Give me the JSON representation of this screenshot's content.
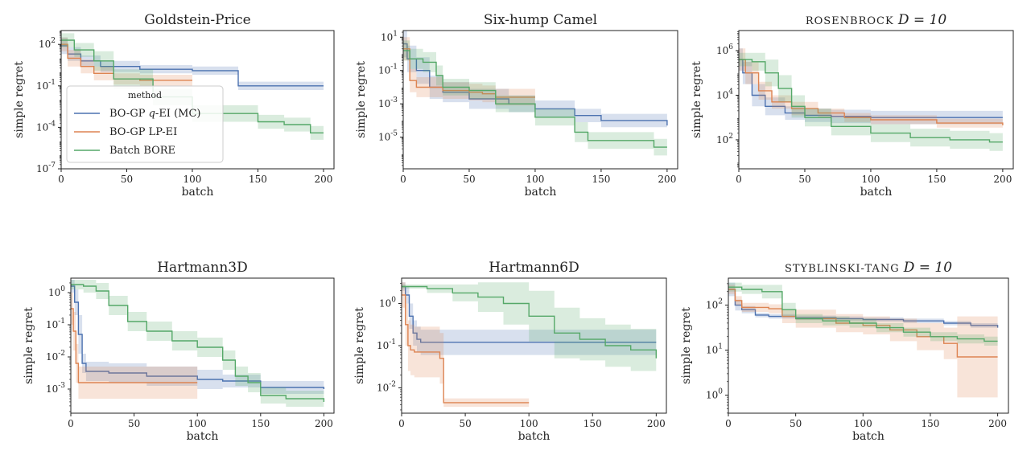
{
  "figure": {
    "x_axis_label": "batch",
    "y_axis_label": "simple regret",
    "legend": {
      "title": "method",
      "placement": "inside-left of first panel"
    }
  },
  "series_styles": [
    {
      "name": "BO-GP q-EI (MC)",
      "label_prefix": "BO-GP ",
      "label_math": "q",
      "label_suffix": "-EI (MC)",
      "color": "#4c72b0"
    },
    {
      "name": "BO-GP LP-EI",
      "label_prefix": "BO-GP LP-EI",
      "label_math": "",
      "label_suffix": "",
      "color": "#dd8452"
    },
    {
      "name": "Batch BORE",
      "label_prefix": "Batch BORE",
      "label_math": "",
      "label_suffix": "",
      "color": "#55a868"
    }
  ],
  "chart_data": [
    {
      "type": "line",
      "title": "Goldstein-Price",
      "title_parts": [
        {
          "t": "Goldstein-Price",
          "s": "n"
        }
      ],
      "xlabel": "batch",
      "ylabel": "simple regret",
      "yscale": "log",
      "xlim": [
        0,
        208
      ],
      "ylim_log": [
        -7,
        3.0
      ],
      "xticks": [
        0,
        50,
        100,
        150,
        200
      ],
      "xtick_labels": [
        "0",
        "50",
        "100",
        "150",
        "200"
      ],
      "yticks_log": [
        2,
        -1,
        -4,
        -7
      ],
      "ytick_labels": [
        "10^2",
        "10^-1",
        "10^-4",
        "10^-7"
      ],
      "series": [
        {
          "name": "BO-GP q-EI (MC)",
          "x": [
            0,
            5,
            15,
            30,
            60,
            100,
            135,
            200
          ],
          "y": [
            1.9,
            1.3,
            0.8,
            0.4,
            0.2,
            0.1,
            -1.0,
            -1.0
          ],
          "band": [
            0.6,
            0.5,
            0.4,
            0.4,
            0.3,
            0.3,
            0.3,
            0.3
          ]
        },
        {
          "name": "BO-GP LP-EI",
          "x": [
            0,
            5,
            15,
            25,
            40,
            60,
            100
          ],
          "y": [
            2.0,
            1.0,
            0.4,
            -0.1,
            -0.5,
            -0.6,
            -0.6
          ],
          "band": [
            0.5,
            0.6,
            0.5,
            0.5,
            0.4,
            0.4,
            0.4
          ]
        },
        {
          "name": "Batch BORE",
          "x": [
            0,
            10,
            25,
            40,
            70,
            100,
            150,
            170,
            190,
            200
          ],
          "y": [
            2.3,
            1.6,
            0.8,
            -0.5,
            -1.8,
            -3.0,
            -3.6,
            -3.8,
            -4.4,
            -4.4
          ],
          "band": [
            0.5,
            0.5,
            0.7,
            0.7,
            0.6,
            0.6,
            0.5,
            0.5,
            0.5,
            0.5
          ]
        }
      ]
    },
    {
      "type": "line",
      "title": "Six-hump Camel",
      "title_parts": [
        {
          "t": "Six-hump Camel",
          "s": "n"
        }
      ],
      "xlabel": "batch",
      "ylabel": "simple regret",
      "yscale": "log",
      "xlim": [
        0,
        208
      ],
      "ylim_log": [
        -6.9,
        1.4
      ],
      "xticks": [
        0,
        50,
        100,
        150,
        200
      ],
      "xtick_labels": [
        "0",
        "50",
        "100",
        "150",
        "200"
      ],
      "yticks_log": [
        1,
        -1,
        -3,
        -5
      ],
      "ytick_labels": [
        "10^1",
        "10^-1",
        "10^-3",
        "10^-5"
      ],
      "series": [
        {
          "name": "BO-GP q-EI (MC)",
          "x": [
            0,
            3,
            10,
            20,
            30,
            50,
            80,
            100,
            130,
            150,
            180,
            200
          ],
          "y": [
            0.6,
            -0.3,
            -1.0,
            -2.0,
            -2.3,
            -2.7,
            -3.0,
            -3.3,
            -3.7,
            -4.0,
            -4.0,
            -4.3
          ],
          "band": [
            0.8,
            0.8,
            0.8,
            0.7,
            0.6,
            0.6,
            0.5,
            0.5,
            0.4,
            0.4,
            0.4,
            0.4
          ]
        },
        {
          "name": "BO-GP LP-EI",
          "x": [
            0,
            5,
            10,
            30,
            50,
            60,
            70,
            100
          ],
          "y": [
            0.3,
            -1.6,
            -2.0,
            -2.2,
            -2.3,
            -2.4,
            -2.6,
            -2.6
          ],
          "band": [
            0.7,
            0.7,
            0.6,
            0.5,
            0.5,
            0.5,
            0.5,
            0.5
          ]
        },
        {
          "name": "Batch BORE",
          "x": [
            0,
            5,
            15,
            25,
            30,
            50,
            70,
            100,
            130,
            140,
            150,
            190,
            200
          ],
          "y": [
            0.2,
            -0.3,
            -0.5,
            -1.3,
            -2.0,
            -2.2,
            -3.0,
            -3.8,
            -4.7,
            -5.2,
            -5.2,
            -5.6,
            -5.6
          ],
          "band": [
            0.6,
            0.6,
            0.6,
            0.6,
            0.5,
            0.5,
            0.5,
            0.5,
            0.6,
            0.5,
            0.5,
            0.5,
            0.5
          ]
        }
      ]
    },
    {
      "type": "line",
      "title": "ROSENBROCK D = 10",
      "title_parts": [
        {
          "t": "ROSENBROCK ",
          "s": "sc"
        },
        {
          "t": "D = 10",
          "s": "i"
        }
      ],
      "xlabel": "batch",
      "ylabel": "simple regret",
      "yscale": "log",
      "xlim": [
        0,
        208
      ],
      "ylim_log": [
        0.7,
        6.9
      ],
      "xticks": [
        0,
        50,
        100,
        150,
        200
      ],
      "xtick_labels": [
        "0",
        "50",
        "100",
        "150",
        "200"
      ],
      "yticks_log": [
        6,
        4,
        2
      ],
      "ytick_labels": [
        "10^6",
        "10^4",
        "10^2"
      ],
      "series": [
        {
          "name": "BO-GP q-EI (MC)",
          "x": [
            0,
            3,
            10,
            20,
            35,
            50,
            70,
            100,
            150,
            200
          ],
          "y": [
            5.6,
            5.0,
            4.0,
            3.5,
            3.2,
            3.1,
            3.05,
            3.0,
            3.0,
            3.0
          ],
          "band": [
            0.5,
            0.5,
            0.5,
            0.4,
            0.3,
            0.3,
            0.3,
            0.3,
            0.3,
            0.3
          ]
        },
        {
          "name": "BO-GP LP-EI",
          "x": [
            0,
            5,
            15,
            25,
            40,
            60,
            80,
            100,
            150,
            200
          ],
          "y": [
            5.6,
            5.0,
            4.2,
            3.7,
            3.4,
            3.2,
            3.0,
            2.9,
            2.75,
            2.65
          ],
          "band": [
            0.5,
            0.5,
            0.4,
            0.3,
            0.3,
            0.2,
            0.2,
            0.2,
            0.2,
            0.2
          ]
        },
        {
          "name": "Batch BORE",
          "x": [
            0,
            10,
            20,
            30,
            40,
            50,
            70,
            100,
            130,
            160,
            190,
            200
          ],
          "y": [
            5.6,
            5.5,
            5.0,
            4.3,
            3.5,
            3.0,
            2.6,
            2.3,
            2.1,
            2.0,
            1.9,
            1.9
          ],
          "band": [
            0.3,
            0.4,
            0.6,
            0.6,
            0.5,
            0.4,
            0.4,
            0.4,
            0.4,
            0.4,
            0.4,
            0.4
          ]
        }
      ]
    },
    {
      "type": "line",
      "title": "Hartmann3D",
      "title_parts": [
        {
          "t": "Hartmann3D",
          "s": "n"
        }
      ],
      "xlabel": "batch",
      "ylabel": "simple regret",
      "yscale": "log",
      "xlim": [
        0,
        208
      ],
      "ylim_log": [
        -3.75,
        0.45
      ],
      "xticks": [
        0,
        50,
        100,
        150,
        200
      ],
      "xtick_labels": [
        "0",
        "50",
        "100",
        "150",
        "200"
      ],
      "yticks_log": [
        0,
        -1,
        -2,
        -3
      ],
      "ytick_labels": [
        "10^0",
        "10^-1",
        "10^-2",
        "10^-3"
      ],
      "series": [
        {
          "name": "BO-GP q-EI (MC)",
          "x": [
            0,
            3,
            6,
            9,
            12,
            30,
            60,
            100,
            120,
            150,
            200
          ],
          "y": [
            0.2,
            -0.3,
            -1.3,
            -2.2,
            -2.45,
            -2.5,
            -2.6,
            -2.7,
            -2.75,
            -2.95,
            -3.0
          ],
          "band": [
            0.2,
            0.4,
            0.6,
            0.3,
            0.3,
            0.3,
            0.3,
            0.3,
            0.2,
            0.2,
            0.2
          ]
        },
        {
          "name": "BO-GP LP-EI",
          "x": [
            0,
            2,
            4,
            6,
            10,
            100
          ],
          "y": [
            -0.5,
            -1.2,
            -2.2,
            -2.8,
            -2.8,
            -2.8
          ],
          "band": [
            0.5,
            0.6,
            0.6,
            0.5,
            0.5,
            0.5
          ]
        },
        {
          "name": "Batch BORE",
          "x": [
            0,
            10,
            20,
            30,
            45,
            60,
            80,
            100,
            120,
            130,
            140,
            150,
            170,
            200
          ],
          "y": [
            0.25,
            0.2,
            0.05,
            -0.4,
            -0.9,
            -1.2,
            -1.5,
            -1.7,
            -2.1,
            -2.6,
            -2.8,
            -3.2,
            -3.3,
            -3.4
          ],
          "band": [
            0.15,
            0.2,
            0.25,
            0.3,
            0.3,
            0.3,
            0.3,
            0.3,
            0.3,
            0.3,
            0.3,
            0.25,
            0.25,
            0.25
          ]
        }
      ]
    },
    {
      "type": "line",
      "title": "Hartmann6D",
      "title_parts": [
        {
          "t": "Hartmann6D",
          "s": "n"
        }
      ],
      "xlabel": "batch",
      "ylabel": "simple regret",
      "yscale": "log",
      "xlim": [
        0,
        208
      ],
      "ylim_log": [
        -2.6,
        0.6
      ],
      "xticks": [
        0,
        50,
        100,
        150,
        200
      ],
      "xtick_labels": [
        "0",
        "50",
        "100",
        "150",
        "200"
      ],
      "yticks_log": [
        0,
        -1,
        -2
      ],
      "ytick_labels": [
        "10^0",
        "10^-1",
        "10^-2"
      ],
      "series": [
        {
          "name": "BO-GP q-EI (MC)",
          "x": [
            0,
            3,
            6,
            9,
            12,
            15,
            50,
            100,
            150,
            200
          ],
          "y": [
            0.4,
            0.2,
            -0.3,
            -0.7,
            -0.85,
            -0.92,
            -0.92,
            -0.92,
            -0.92,
            -0.92
          ],
          "band": [
            0.1,
            0.2,
            0.3,
            0.3,
            0.3,
            0.3,
            0.3,
            0.3,
            0.3,
            0.3
          ]
        },
        {
          "name": "BO-GP LP-EI",
          "x": [
            0,
            3,
            5,
            7,
            10,
            30,
            33,
            100
          ],
          "y": [
            0.2,
            -0.5,
            -1.0,
            -1.1,
            -1.15,
            -1.3,
            -2.35,
            -2.35
          ],
          "band": [
            0.3,
            0.5,
            0.6,
            0.6,
            0.6,
            0.6,
            0.1,
            0.1
          ]
        },
        {
          "name": "Batch BORE",
          "x": [
            0,
            10,
            20,
            40,
            60,
            80,
            100,
            120,
            140,
            160,
            180,
            200
          ],
          "y": [
            0.4,
            0.4,
            0.35,
            0.25,
            0.15,
            0.0,
            -0.3,
            -0.7,
            -0.85,
            -1.0,
            -1.1,
            -1.3
          ],
          "band": [
            0.05,
            0.05,
            0.1,
            0.2,
            0.35,
            0.5,
            0.6,
            0.6,
            0.5,
            0.5,
            0.5,
            0.5
          ]
        }
      ]
    },
    {
      "type": "line",
      "title": "STYBLINSKI-TANG D = 10",
      "title_parts": [
        {
          "t": "STYBLINSKI-TANG ",
          "s": "sc"
        },
        {
          "t": "D = 10",
          "s": "i"
        }
      ],
      "xlabel": "batch",
      "ylabel": "simple regret",
      "yscale": "log",
      "xlim": [
        0,
        208
      ],
      "ylim_log": [
        -0.4,
        2.6
      ],
      "xticks": [
        0,
        50,
        100,
        150,
        200
      ],
      "xtick_labels": [
        "0",
        "50",
        "100",
        "150",
        "200"
      ],
      "yticks_log": [
        2,
        1,
        0
      ],
      "ytick_labels": [
        "10^2",
        "10^1",
        "10^0"
      ],
      "series": [
        {
          "name": "BO-GP q-EI (MC)",
          "x": [
            0,
            5,
            10,
            20,
            30,
            50,
            80,
            100,
            130,
            160,
            180,
            200
          ],
          "y": [
            2.35,
            2.0,
            1.9,
            1.78,
            1.75,
            1.72,
            1.7,
            1.68,
            1.65,
            1.6,
            1.55,
            1.5
          ],
          "band": [
            0.15,
            0.12,
            0.08,
            0.05,
            0.05,
            0.05,
            0.05,
            0.05,
            0.05,
            0.05,
            0.05,
            0.05
          ]
        },
        {
          "name": "BO-GP LP-EI",
          "x": [
            0,
            5,
            10,
            30,
            40,
            50,
            80,
            100,
            120,
            140,
            160,
            170,
            175,
            200
          ],
          "y": [
            2.35,
            2.1,
            1.95,
            1.92,
            1.75,
            1.7,
            1.6,
            1.55,
            1.45,
            1.3,
            1.15,
            0.85,
            0.85,
            0.85
          ],
          "band": [
            0.1,
            0.1,
            0.1,
            0.1,
            0.15,
            0.2,
            0.2,
            0.2,
            0.25,
            0.3,
            0.35,
            0.9,
            0.9,
            0.9
          ]
        },
        {
          "name": "Batch BORE",
          "x": [
            0,
            10,
            25,
            40,
            50,
            70,
            90,
            110,
            130,
            150,
            170,
            190,
            200
          ],
          "y": [
            2.4,
            2.35,
            2.3,
            1.9,
            1.7,
            1.65,
            1.6,
            1.5,
            1.4,
            1.3,
            1.25,
            1.2,
            1.2
          ],
          "band": [
            0.1,
            0.1,
            0.15,
            0.15,
            0.1,
            0.1,
            0.1,
            0.1,
            0.1,
            0.1,
            0.1,
            0.1,
            0.1
          ]
        }
      ]
    }
  ]
}
